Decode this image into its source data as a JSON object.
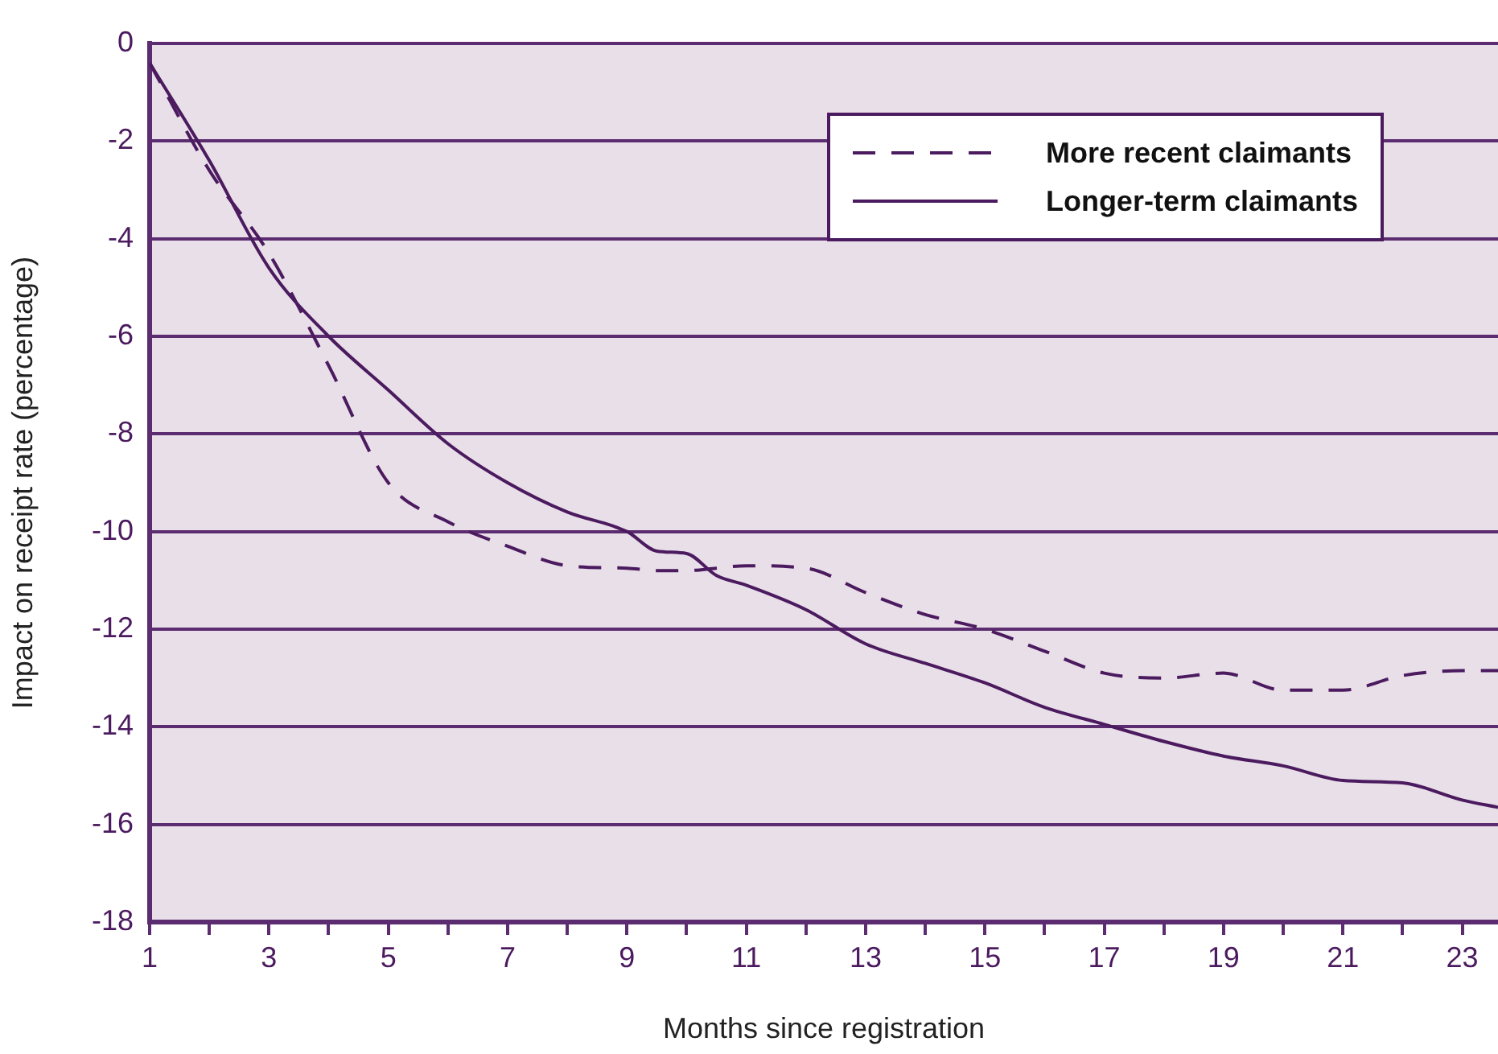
{
  "chart_data": {
    "type": "line",
    "xlabel": "Months since registration",
    "ylabel": "Impact on receipt rate (percentage)",
    "x": [
      1,
      2,
      3,
      4,
      5,
      6,
      7,
      8,
      9,
      9.5,
      10,
      10.5,
      11,
      12,
      13,
      14,
      15,
      16,
      17,
      18,
      19,
      20,
      21,
      22,
      23,
      23.6
    ],
    "series": [
      {
        "name": "More recent claimants",
        "color": "#4b1a5f",
        "line_style": "dashed",
        "values": [
          -0.4,
          -2.6,
          -4.3,
          -6.6,
          -9.0,
          -9.8,
          -10.3,
          -10.7,
          -10.75,
          -10.8,
          -10.8,
          -10.75,
          -10.7,
          -10.75,
          -11.25,
          -11.7,
          -12.0,
          -12.45,
          -12.9,
          -13.0,
          -12.9,
          -13.25,
          -13.25,
          -12.95,
          -12.85,
          -12.85
        ]
      },
      {
        "name": "Longer-term claimants",
        "color": "#4b1a5f",
        "line_style": "solid",
        "values": [
          -0.4,
          -2.4,
          -4.6,
          -6.0,
          -7.1,
          -8.2,
          -9.0,
          -9.6,
          -10.0,
          -10.4,
          -10.45,
          -10.9,
          -11.1,
          -11.6,
          -12.3,
          -12.7,
          -13.1,
          -13.6,
          -13.95,
          -14.3,
          -14.6,
          -14.8,
          -15.1,
          -15.15,
          -15.5,
          -15.65
        ]
      }
    ],
    "xlim": [
      1,
      23.6
    ],
    "xticks": [
      1,
      {
        "value": 2,
        "label": null
      },
      3,
      {
        "value": 4,
        "label": null
      },
      5,
      {
        "value": 6,
        "label": null
      },
      7,
      {
        "value": 8,
        "label": null
      },
      9,
      {
        "value": 10,
        "label": null
      },
      11,
      {
        "value": 12,
        "label": null
      },
      13,
      {
        "value": 14,
        "label": null
      },
      15,
      {
        "value": 16,
        "label": null
      },
      17,
      {
        "value": 18,
        "label": null
      },
      19,
      {
        "value": 20,
        "label": null
      },
      21,
      {
        "value": 22,
        "label": null
      },
      23
    ],
    "ylim": [
      -18,
      0
    ],
    "yticks": [
      0,
      -2,
      -4,
      -6,
      -8,
      -10,
      -12,
      -14,
      -16,
      -18
    ],
    "grid": "y",
    "legend": "top right"
  }
}
